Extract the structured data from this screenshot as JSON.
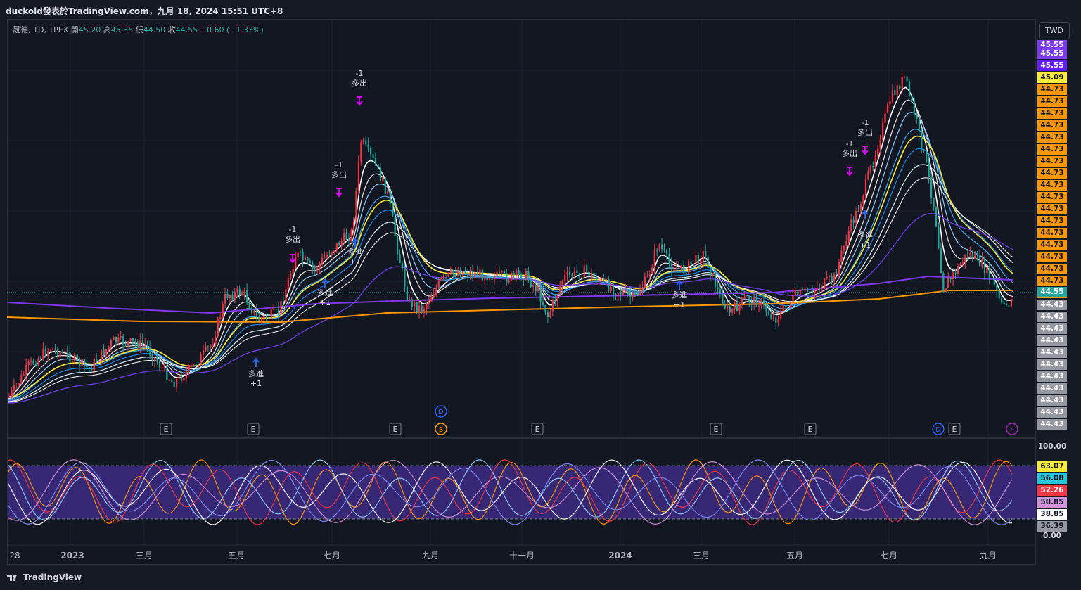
{
  "header": {
    "publisher_line": "duckold發表於TradingView.com，九月 18, 2024 15:51 UTC+8"
  },
  "legend": {
    "symbol": "晟德, 1D, TPEX",
    "open_label": "開",
    "open": "45.20",
    "high_label": "高",
    "high": "45.35",
    "low_label": "低",
    "low": "44.50",
    "close_label": "收",
    "close": "44.55",
    "change": "−0.60 (−1.33%)"
  },
  "currency_button": "TWD",
  "price_labels": {
    "top_partial": "45.55",
    "purple_1": "45.55",
    "purple_2": "45.55",
    "yellow": "45.09",
    "orange": [
      "44.73",
      "44.73",
      "44.73",
      "44.73",
      "44.73",
      "44.73",
      "44.73",
      "44.73",
      "44.73",
      "44.73",
      "44.73",
      "44.73",
      "44.73",
      "44.73",
      "44.73",
      "44.73",
      "44.73",
      "44.73"
    ],
    "last": "44.55",
    "gray": [
      "44.43",
      "44.43",
      "44.43",
      "44.43",
      "44.43",
      "44.43",
      "44.43",
      "44.43",
      "44.43",
      "44.43",
      "44.43",
      "44.43",
      "44.43",
      "44.43",
      "44.43",
      "44.43",
      "44.43",
      "44.43",
      "44.43",
      "44.43"
    ]
  },
  "oscillator_labels": {
    "top": "100.00",
    "bottom": "0.00",
    "values": [
      "63.07",
      "56.08",
      "52.26",
      "50.85",
      "38.85",
      "36.39"
    ]
  },
  "x_axis": [
    "28",
    "2023",
    "三月",
    "五月",
    "七月",
    "九月",
    "十一月",
    "2024",
    "三月",
    "五月",
    "七月",
    "九月"
  ],
  "signals": {
    "sell_text": "多出",
    "sell_num": "-1",
    "buy_text": "多進",
    "buy_num": "+1"
  },
  "event_markers": {
    "earnings": "E",
    "dividend": "D",
    "split": "S",
    "flash": "⚡"
  },
  "branding": "TradingView",
  "colors": {
    "up": "#f23645",
    "down": "#26a69a",
    "white_ma": "#ffffff",
    "blue_ma": "#2962ff",
    "yellow_ma": "#ffeb3b",
    "purple_ma": "#7b42f6",
    "orange_ma": "#ff9800",
    "osc_band": "#3c2a80"
  },
  "chart_data": {
    "type": "line",
    "title": "晟德, 1D, TPEX",
    "x_start": "2022-12-28",
    "x_end": "2024-09-18",
    "last_close": 44.55,
    "approx_close_series": [
      {
        "date": "2022-12-28",
        "close": 43.9
      },
      {
        "date": "2023-01-15",
        "close": 44.0
      },
      {
        "date": "2023-02-15",
        "close": 44.1
      },
      {
        "date": "2023-03-15",
        "close": 44.0
      },
      {
        "date": "2023-04-15",
        "close": 44.5
      },
      {
        "date": "2023-05-15",
        "close": 44.6
      },
      {
        "date": "2023-06-15",
        "close": 44.9
      },
      {
        "date": "2023-07-10",
        "close": 45.4
      },
      {
        "date": "2023-07-25",
        "close": 45.1
      },
      {
        "date": "2023-08-15",
        "close": 44.5
      },
      {
        "date": "2023-09-15",
        "close": 44.6
      },
      {
        "date": "2023-10-15",
        "close": 44.6
      },
      {
        "date": "2023-11-15",
        "close": 44.5
      },
      {
        "date": "2023-12-15",
        "close": 44.6
      },
      {
        "date": "2024-01-15",
        "close": 44.6
      },
      {
        "date": "2024-02-15",
        "close": 44.7
      },
      {
        "date": "2024-03-15",
        "close": 44.4
      },
      {
        "date": "2024-04-15",
        "close": 44.5
      },
      {
        "date": "2024-05-15",
        "close": 44.6
      },
      {
        "date": "2024-06-15",
        "close": 45.0
      },
      {
        "date": "2024-07-10",
        "close": 45.5
      },
      {
        "date": "2024-07-25",
        "close": 45.2
      },
      {
        "date": "2024-08-10",
        "close": 44.6
      },
      {
        "date": "2024-08-25",
        "close": 44.8
      },
      {
        "date": "2024-09-18",
        "close": 44.55
      }
    ]
  }
}
